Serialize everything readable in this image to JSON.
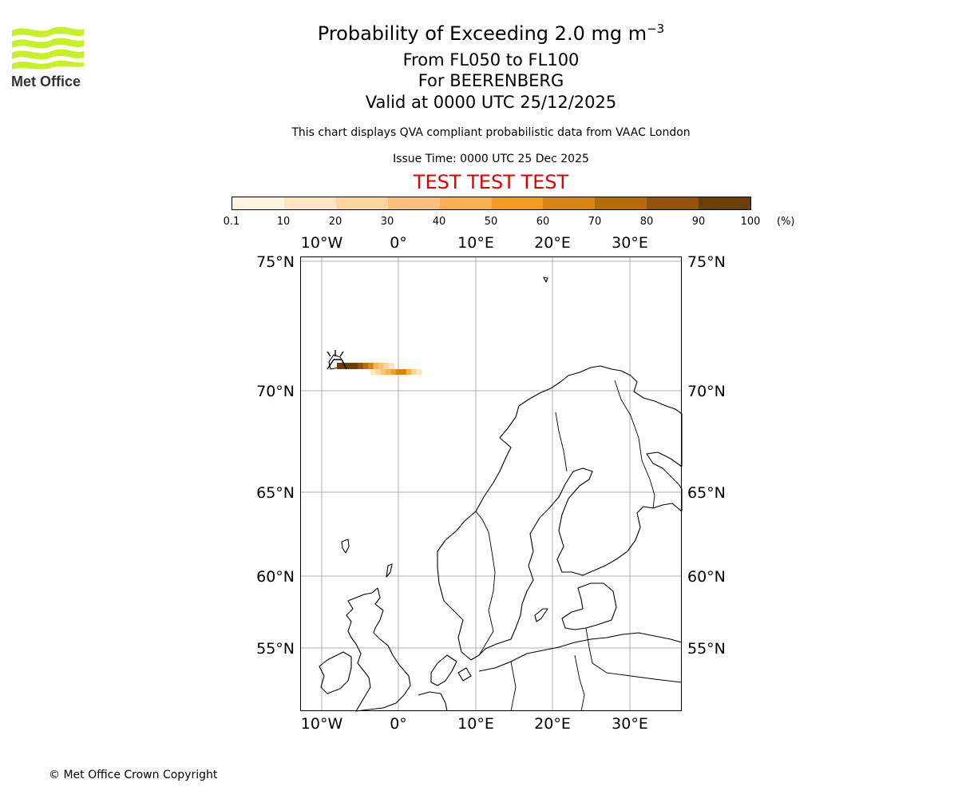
{
  "logo": {
    "text": "Met Office",
    "color": "#c8f028"
  },
  "header": {
    "title_main": "Probability of Exceeding 2.0 mg m",
    "title_exponent": "−3",
    "level_range": "From FL050 to FL100",
    "volcano": "For BEERENBERG",
    "valid_time": "Valid at 0000 UTC 25/12/2025",
    "disclaimer": "This chart displays QVA compliant probabilistic data from VAAC London",
    "issue_time": "Issue Time: 0000 UTC 25 Dec 2025",
    "test_banner": "TEST TEST TEST"
  },
  "colorbar": {
    "ticks": [
      "0.1",
      "10",
      "20",
      "30",
      "40",
      "50",
      "60",
      "70",
      "80",
      "90",
      "100"
    ],
    "unit": "(%)",
    "colors": [
      "#fff4e0",
      "#fee6c2",
      "#fdd5a0",
      "#fdc27a",
      "#fcb050",
      "#f59c20",
      "#d98410",
      "#b86c08",
      "#93540a",
      "#6b3d08"
    ]
  },
  "map": {
    "lon_labels_top": [
      "10°W",
      "0°",
      "10°E",
      "20°E",
      "30°E"
    ],
    "lon_labels_bottom": [
      "10°W",
      "0°",
      "10°E",
      "20°E",
      "30°E"
    ],
    "lat_labels_left": [
      "75°N",
      "70°N",
      "65°N",
      "60°N",
      "55°N"
    ],
    "lat_labels_right": [
      "75°N",
      "70°N",
      "65°N",
      "60°N",
      "55°N"
    ],
    "volcano_marker": "volcano-icon",
    "plume_probabilities": [
      90,
      90,
      90,
      90,
      80,
      70,
      60,
      40,
      30,
      20,
      10
    ]
  },
  "footer": {
    "copyright": "© Met Office Crown Copyright"
  }
}
